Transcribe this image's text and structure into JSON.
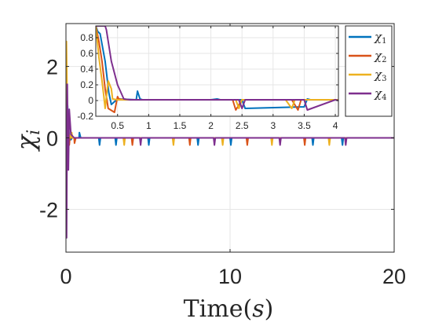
{
  "chart_data": [
    {
      "type": "line",
      "xlabel": "Time(s)",
      "ylabel": "χ",
      "ylabel_subscript": "i",
      "xlim": [
        0,
        20
      ],
      "ylim": [
        -3.2,
        3.2
      ],
      "xticks": [
        0,
        10,
        20
      ],
      "xtick_labels": [
        "0",
        "10",
        "20"
      ],
      "yticks": [
        -2,
        0,
        2
      ],
      "ytick_labels": [
        "-2",
        "0",
        "2"
      ],
      "grid": true,
      "legend_placement": "top-right",
      "colors": [
        "#0072BD",
        "#D95319",
        "#EDB120",
        "#7E2F8E"
      ],
      "series": [
        {
          "name": "χ1",
          "label_main": "χ",
          "label_sub": "1",
          "color": "#0072BD",
          "x": [
            0,
            0.05,
            0.1,
            0.15,
            0.2,
            0.3,
            0.4,
            0.5,
            0.6,
            0.8,
            0.82,
            0.9,
            1.0,
            2.0,
            2.05,
            2.1,
            3.0,
            3.05,
            3.1,
            5.0,
            5.05,
            5.1,
            8.0,
            8.05,
            8.1,
            10.0,
            10.05,
            10.1,
            15.0,
            15.05,
            15.1,
            16.8,
            16.85,
            16.9,
            20
          ],
          "y": [
            0,
            1.0,
            0.9,
            0.3,
            0.05,
            -0.05,
            0.02,
            0,
            0,
            0,
            0.15,
            0,
            0,
            0,
            -0.2,
            0,
            0,
            -0.2,
            0,
            0,
            -0.2,
            0,
            0,
            -0.2,
            0,
            0,
            -0.2,
            0,
            0,
            -0.2,
            0,
            0,
            -0.2,
            0,
            0
          ]
        },
        {
          "name": "χ2",
          "label_main": "χ",
          "label_sub": "2",
          "color": "#D95319",
          "x": [
            0,
            0.05,
            0.1,
            0.15,
            0.2,
            0.25,
            0.3,
            0.5,
            0.52,
            0.6,
            1.0,
            4.0,
            4.05,
            4.1,
            7.5,
            7.55,
            7.6,
            11.0,
            11.05,
            11.1,
            14.5,
            14.55,
            14.6,
            20
          ],
          "y": [
            0,
            1.2,
            0.6,
            -0.1,
            -0.2,
            0.05,
            0,
            0,
            -0.15,
            0,
            0,
            0,
            -0.2,
            0,
            0,
            -0.2,
            0,
            0,
            -0.2,
            0,
            0,
            -0.2,
            0,
            0
          ]
        },
        {
          "name": "χ3",
          "label_main": "χ",
          "label_sub": "3",
          "color": "#EDB120",
          "x": [
            0,
            0.03,
            0.06,
            0.1,
            0.15,
            0.2,
            0.3,
            0.35,
            0.4,
            0.5,
            1.0,
            3.5,
            3.55,
            3.6,
            6.5,
            6.55,
            6.6,
            9.5,
            9.55,
            9.6,
            12.5,
            12.55,
            12.6,
            16.0,
            16.05,
            16.1,
            20
          ],
          "y": [
            0,
            2.7,
            1.5,
            0.3,
            -0.1,
            0.1,
            0,
            0.15,
            0,
            0,
            0,
            0,
            -0.2,
            0,
            0,
            -0.2,
            0,
            0,
            -0.2,
            0,
            0,
            -0.2,
            0,
            0,
            -0.2,
            0,
            0
          ]
        },
        {
          "name": "χ4",
          "label_main": "χ",
          "label_sub": "4",
          "color": "#7E2F8E",
          "x": [
            0,
            0.02,
            0.04,
            0.06,
            0.08,
            0.1,
            0.15,
            0.2,
            0.3,
            0.5,
            1.0,
            4.5,
            4.55,
            4.6,
            9.0,
            9.05,
            9.1,
            13.0,
            13.05,
            13.1,
            17.0,
            17.05,
            17.1,
            20
          ],
          "y": [
            0,
            0.5,
            -2.8,
            -0.5,
            1.5,
            0.6,
            -0.9,
            0.8,
            0.1,
            0,
            0,
            0,
            -0.2,
            0,
            0,
            -0.2,
            0,
            0,
            -0.2,
            0,
            0,
            -0.2,
            0,
            0
          ]
        }
      ]
    },
    {
      "type": "line",
      "role": "inset",
      "xlim": [
        0.15,
        4.05
      ],
      "ylim": [
        -0.2,
        0.95
      ],
      "xticks": [
        0.5,
        1,
        1.5,
        2,
        2.5,
        3,
        3.5,
        4
      ],
      "xtick_labels": [
        "0.5",
        "1",
        "1.5",
        "2",
        "2.5",
        "3",
        "3.5",
        "4"
      ],
      "yticks": [
        -0.2,
        0,
        0.2,
        0.4,
        0.6,
        0.8
      ],
      "ytick_labels": [
        "-0.2",
        "0",
        "0.2",
        "0.4",
        "0.6",
        "0.8"
      ],
      "grid": true,
      "series": [
        {
          "name": "χ1",
          "color": "#0072BD",
          "x": [
            0.15,
            0.18,
            0.22,
            0.3,
            0.36,
            0.4,
            0.5,
            0.8,
            0.82,
            0.86,
            0.9,
            1.0,
            2.0,
            2.1,
            2.15,
            2.5,
            2.55,
            3.5,
            3.55,
            3.6,
            4.05
          ],
          "y": [
            0.95,
            0.88,
            0.85,
            0.5,
            0.1,
            -0.05,
            0.02,
            0.01,
            0.12,
            0.02,
            0.01,
            0.01,
            0.01,
            0.02,
            0.01,
            0.01,
            -0.1,
            -0.08,
            0.02,
            0.01,
            0.01
          ]
        },
        {
          "name": "χ2",
          "color": "#D95319",
          "x": [
            0.15,
            0.2,
            0.25,
            0.3,
            0.35,
            0.45,
            0.5,
            0.52,
            0.6,
            0.7,
            1.0,
            2.35,
            2.4,
            2.5,
            3.3,
            3.4,
            3.45,
            4.05
          ],
          "y": [
            0.95,
            0.75,
            0.5,
            0.15,
            -0.1,
            -0.15,
            0.05,
            0.02,
            0.01,
            0.01,
            0.01,
            0.01,
            -0.12,
            0.01,
            0.01,
            -0.12,
            0.01,
            0.01
          ]
        },
        {
          "name": "χ3",
          "color": "#EDB120",
          "x": [
            0.15,
            0.2,
            0.25,
            0.28,
            0.3,
            0.35,
            0.4,
            0.42,
            0.5,
            0.7,
            1.0,
            2.4,
            2.45,
            2.5,
            3.2,
            3.3,
            3.35,
            4.05
          ],
          "y": [
            0.95,
            0.55,
            0.25,
            0.05,
            -0.1,
            0.25,
            0.15,
            0.02,
            0.01,
            0.01,
            0.01,
            0.01,
            -0.1,
            0.01,
            0.01,
            -0.1,
            0.01,
            0.01
          ]
        },
        {
          "name": "χ4",
          "color": "#7E2F8E",
          "x": [
            0.15,
            0.3,
            0.32,
            0.4,
            0.5,
            0.6,
            0.7,
            1.0,
            2.45,
            2.5,
            2.55,
            3.5,
            3.55,
            4.0,
            4.05
          ],
          "y": [
            0.95,
            0.95,
            0.9,
            0.5,
            0.2,
            0.02,
            0.01,
            0.01,
            0.01,
            -0.1,
            0.01,
            0.01,
            -0.12,
            0.01,
            0.0
          ]
        }
      ]
    }
  ]
}
